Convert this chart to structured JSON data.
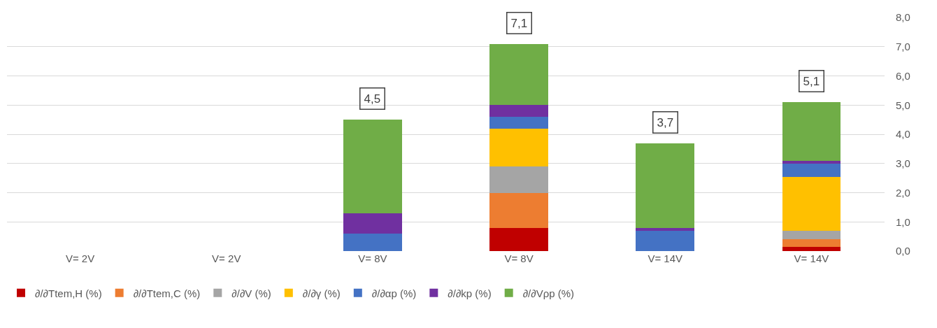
{
  "chart_data": {
    "type": "bar",
    "stacked": true,
    "categories": [
      "V= 2V",
      "V= 2V",
      "V= 8V",
      "V= 8V",
      "V= 14V",
      "V= 14V"
    ],
    "series": [
      {
        "name": "∂/∂Ttem,H (%)",
        "color": "#c00000",
        "values": [
          null,
          null,
          0,
          0.8,
          0,
          0.15
        ]
      },
      {
        "name": "∂/∂Ttem,C (%)",
        "color": "#ed7d31",
        "values": [
          null,
          null,
          0,
          1.2,
          0,
          0.25
        ]
      },
      {
        "name": "∂/∂V (%)",
        "color": "#a5a5a5",
        "values": [
          null,
          null,
          0,
          0.9,
          0,
          0.3
        ]
      },
      {
        "name": "∂/∂γ (%)",
        "color": "#ffc000",
        "values": [
          null,
          null,
          0,
          1.3,
          0,
          1.85
        ]
      },
      {
        "name": "∂/∂αp (%)",
        "color": "#4472c4",
        "values": [
          null,
          null,
          0.6,
          0.4,
          0.7,
          0.45
        ]
      },
      {
        "name": "∂/∂kp (%)",
        "color": "#7030a0",
        "values": [
          null,
          null,
          0.7,
          0.4,
          0.1,
          0.1
        ]
      },
      {
        "name": "∂/∂Vρp (%)",
        "color": "#70ad47",
        "values": [
          null,
          null,
          3.2,
          2.1,
          2.9,
          2.0
        ]
      }
    ],
    "totals": [
      null,
      null,
      "4,5",
      "7,1",
      "3,7",
      "5,1"
    ],
    "ylim": [
      0,
      8
    ],
    "yticks": [
      {
        "value": 0,
        "label": "0,0"
      },
      {
        "value": 1,
        "label": "1,0"
      },
      {
        "value": 2,
        "label": "2,0"
      },
      {
        "value": 3,
        "label": "3,0"
      },
      {
        "value": 4,
        "label": "4,0"
      },
      {
        "value": 5,
        "label": "5,0"
      },
      {
        "value": 6,
        "label": "6,0"
      },
      {
        "value": 7,
        "label": "7,0"
      },
      {
        "value": 8,
        "label": "8,0"
      }
    ],
    "grid": "y",
    "legend": "bottom"
  }
}
